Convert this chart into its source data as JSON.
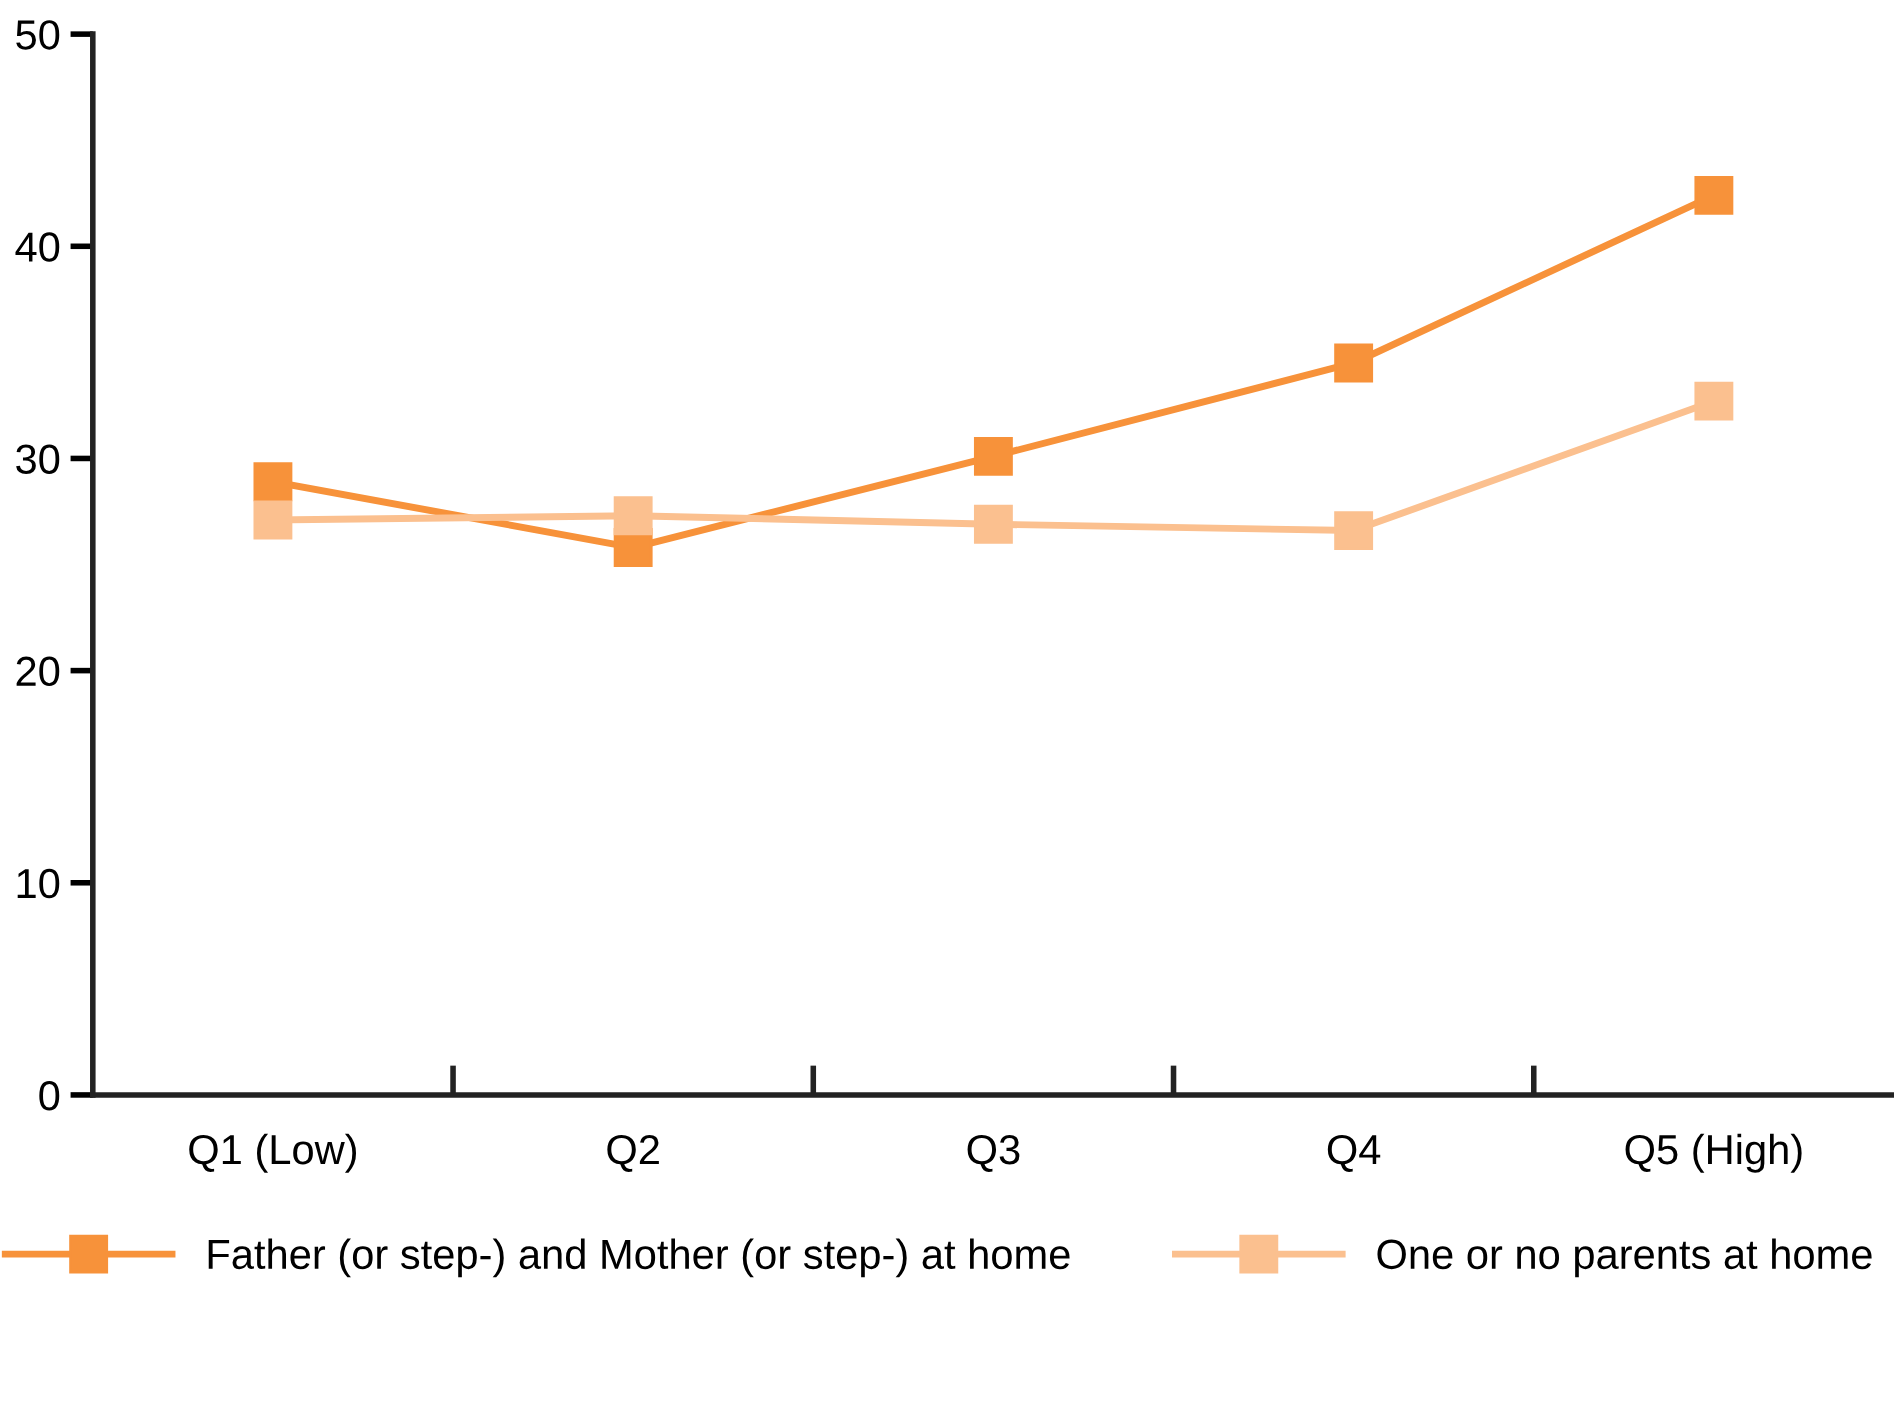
{
  "chart_data": {
    "type": "line",
    "categories": [
      "Q1 (Low)",
      "Q2",
      "Q3",
      "Q4",
      "Q5 (High)"
    ],
    "series": [
      {
        "name": "Father (or step-) and Mother (or step-) at home",
        "color": "#f7923a",
        "values": [
          28.9,
          25.8,
          30.1,
          34.5,
          42.4
        ]
      },
      {
        "name": "One or no parents at home",
        "color": "#fbc08f",
        "values": [
          27.1,
          27.3,
          26.9,
          26.6,
          32.7
        ]
      }
    ],
    "ylim": [
      0,
      50
    ],
    "yticks": [
      0,
      10,
      20,
      30,
      40,
      50
    ],
    "marker": "square",
    "line_style": "solid",
    "grid": false,
    "legend": "bottom"
  }
}
